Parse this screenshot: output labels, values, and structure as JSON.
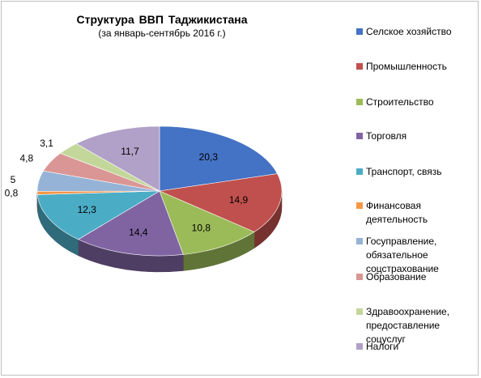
{
  "chart_data": {
    "type": "pie",
    "title": "Структура  ВВП Таджикистана",
    "subtitle": "(за январь-сентябрь 2016 г.)",
    "categories": [
      "Селское хозяйство",
      "Промышленность",
      "Строительство",
      "Торговля",
      "Транспорт, связь",
      "Финансовая деятельность",
      "Госуправление, обязательное соцстрахование",
      "Образование",
      "Здравоохранение, предоставление соцуслуг",
      "Налоги"
    ],
    "values": [
      20.3,
      14.9,
      10.8,
      14.4,
      12.3,
      0.8,
      5,
      4.8,
      3.1,
      11.7
    ],
    "value_labels": [
      "20,3",
      "14,9",
      "10,8",
      "14,4",
      "12,3",
      "0,8",
      "5",
      "4,8",
      "3,1",
      "11,7"
    ],
    "colors": [
      "#4472C4",
      "#C0504D",
      "#9BBB59",
      "#8064A2",
      "#4BACC6",
      "#F79646",
      "#95B3D7",
      "#DA9694",
      "#C4D79B",
      "#B1A0C7"
    ],
    "legend_position": "right",
    "style": "3d-pie"
  }
}
